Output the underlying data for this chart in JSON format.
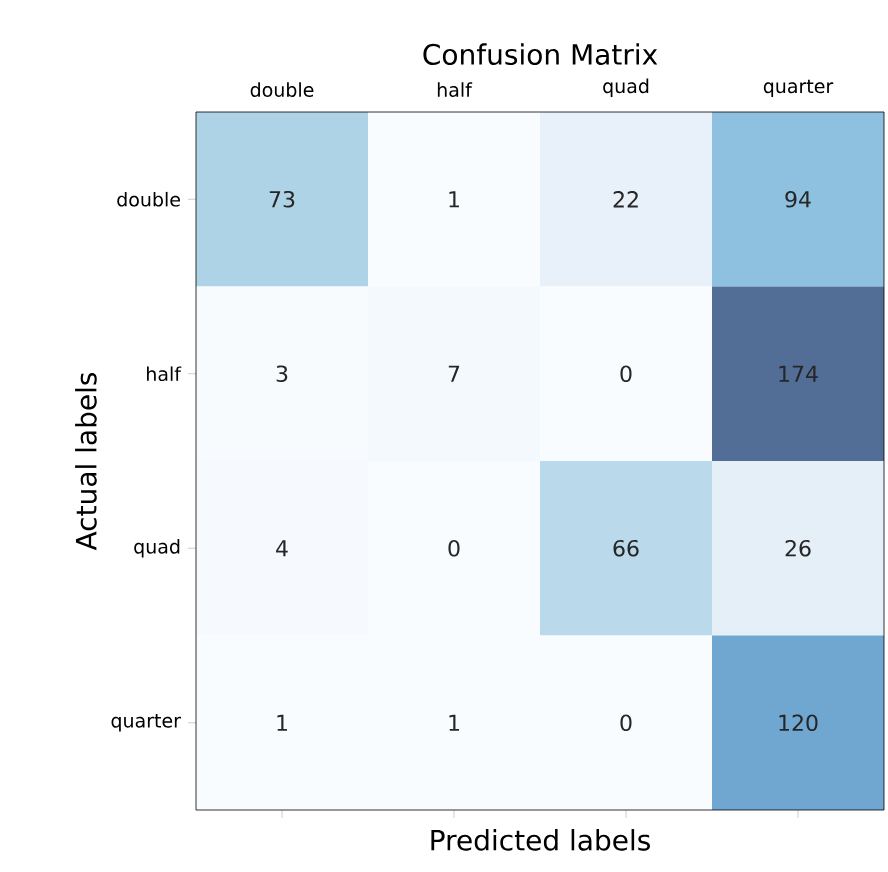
{
  "chart_data": {
    "type": "heatmap",
    "title": "Confusion Matrix",
    "xlabel": "Predicted labels",
    "ylabel": "Actual labels",
    "categories": [
      "double",
      "half",
      "quad",
      "quarter"
    ],
    "y_categories": [
      "double",
      "half",
      "quad",
      "quarter"
    ],
    "cells": [
      [
        73,
        1,
        22,
        94
      ],
      [
        3,
        7,
        0,
        174
      ],
      [
        4,
        0,
        66,
        26
      ],
      [
        1,
        1,
        0,
        120
      ]
    ],
    "data_labels": true
  }
}
